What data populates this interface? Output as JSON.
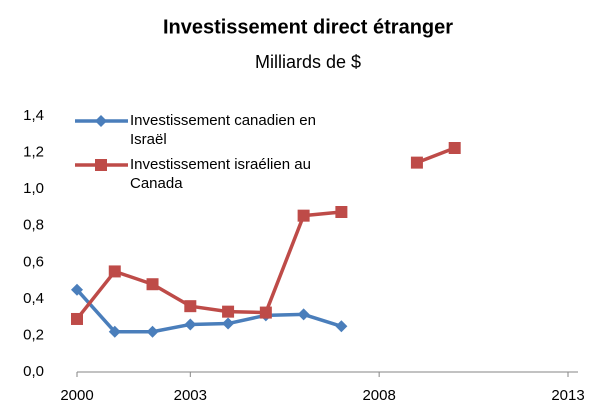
{
  "chart_data": {
    "type": "line",
    "title": "Investissement direct étranger",
    "subtitle": "Milliards de $",
    "x": [
      2000,
      2001,
      2002,
      2003,
      2004,
      2005,
      2006,
      2007,
      2008,
      2009,
      2010
    ],
    "series": [
      {
        "name": "Investissement canadien en Israël",
        "color": "#4a7ebb",
        "marker": "diamond",
        "values": [
          0.45,
          0.22,
          0.22,
          0.26,
          0.265,
          0.31,
          0.315,
          0.25,
          null,
          null,
          null
        ]
      },
      {
        "name": "Investissement israélien au Canada",
        "color": "#be4b48",
        "marker": "square",
        "values": [
          0.29,
          0.55,
          0.48,
          0.36,
          0.33,
          0.325,
          0.855,
          0.875,
          null,
          1.145,
          1.225
        ]
      }
    ],
    "xlim": [
      2000,
      2013
    ],
    "xticks": [
      2000,
      2003,
      2008,
      2013
    ],
    "ylim": [
      0,
      1.4
    ],
    "yticks": [
      {
        "value": 0,
        "label": "0,0"
      },
      {
        "value": 0.2,
        "label": "0,2"
      },
      {
        "value": 0.4,
        "label": "0,4"
      },
      {
        "value": 0.6,
        "label": "0,6"
      },
      {
        "value": 0.8,
        "label": "0,8"
      },
      {
        "value": 1.0,
        "label": "1,0"
      },
      {
        "value": 1.2,
        "label": "1,2"
      },
      {
        "value": 1.4,
        "label": "1,4"
      }
    ],
    "grid": false,
    "legend": "upper left"
  }
}
